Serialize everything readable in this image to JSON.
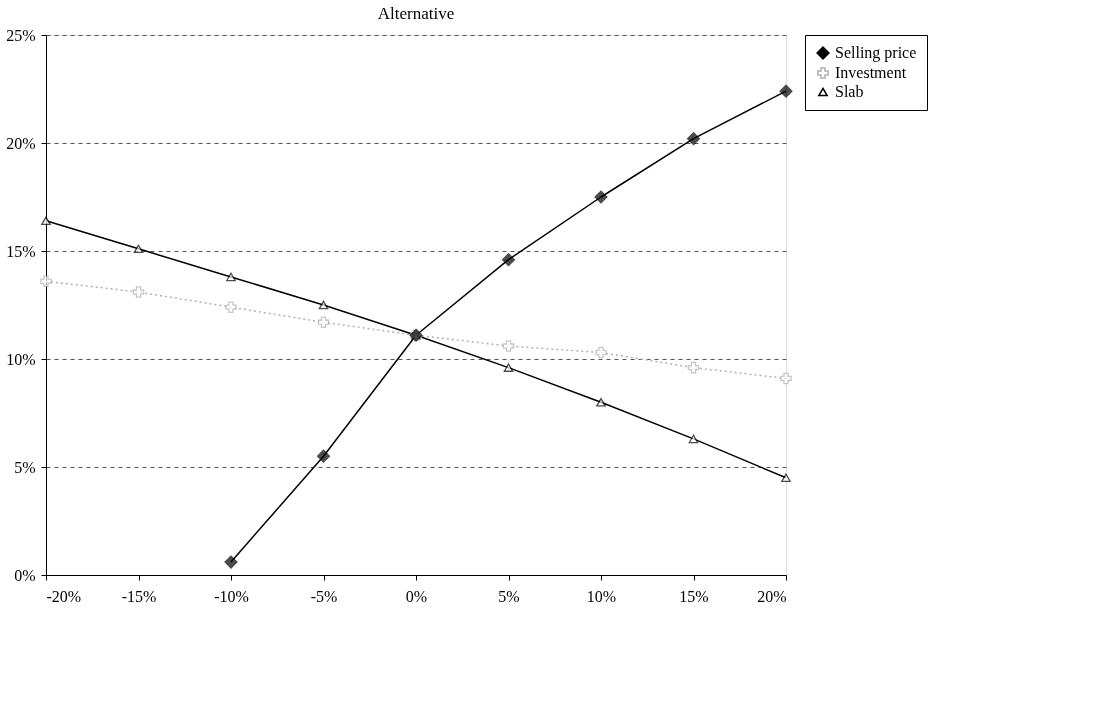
{
  "chart_data": {
    "type": "line",
    "title": "Alternative",
    "x": [
      -20,
      -15,
      -10,
      -5,
      0,
      5,
      10,
      15,
      20
    ],
    "series": [
      {
        "name": "Selling price",
        "color": "#000000",
        "marker": "diamond",
        "line_style": "solid",
        "values": [
          null,
          null,
          0.6,
          5.5,
          11.1,
          14.6,
          17.5,
          20.2,
          22.4
        ]
      },
      {
        "name": "Investment",
        "color": "#b0b0b0",
        "marker": "cross",
        "line_style": "dotted",
        "values": [
          13.6,
          13.1,
          12.4,
          11.7,
          11.1,
          10.6,
          10.3,
          9.6,
          9.1
        ]
      },
      {
        "name": "Slab",
        "color": "#000000",
        "marker": "triangle",
        "line_style": "solid",
        "values": [
          16.4,
          15.1,
          13.8,
          12.5,
          11.1,
          9.6,
          8.0,
          6.3,
          4.5
        ]
      }
    ],
    "xlim": [
      -20,
      20
    ],
    "xticks": [
      {
        "value": -20,
        "label": "-20%"
      },
      {
        "value": -15,
        "label": "-15%"
      },
      {
        "value": -10,
        "label": "-10%"
      },
      {
        "value": -5,
        "label": "-5%"
      },
      {
        "value": 0,
        "label": "0%"
      },
      {
        "value": 5,
        "label": "5%"
      },
      {
        "value": 10,
        "label": "10%"
      },
      {
        "value": 15,
        "label": "15%"
      },
      {
        "value": 20,
        "label": "20%"
      }
    ],
    "ylim": [
      0,
      25
    ],
    "yticks": [
      {
        "value": 0,
        "label": "0%"
      },
      {
        "value": 5,
        "label": "5%"
      },
      {
        "value": 10,
        "label": "10%"
      },
      {
        "value": 15,
        "label": "15%"
      },
      {
        "value": 20,
        "label": "20%"
      },
      {
        "value": 25,
        "label": "25%"
      }
    ],
    "grid": "y",
    "legend": "right"
  }
}
